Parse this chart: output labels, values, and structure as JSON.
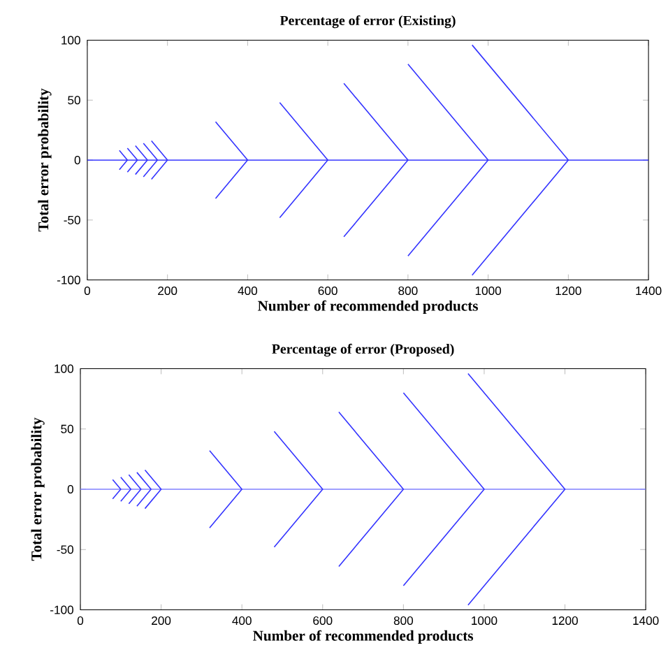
{
  "chart_data": [
    {
      "type": "line",
      "title": "Percentage of error (Existing)",
      "xlabel": "Number of recommended products",
      "ylabel": "Total error probability",
      "xlim": [
        0,
        1400
      ],
      "ylim": [
        -100,
        100
      ],
      "xticks": [
        0,
        200,
        400,
        600,
        800,
        1000,
        1200,
        1400
      ],
      "yticks": [
        -100,
        -50,
        0,
        50,
        100
      ],
      "series": [
        {
          "color": "#1a1aff",
          "x": [
            0,
            1400
          ],
          "values": [
            0,
            0
          ]
        },
        {
          "color": "#3333ff",
          "x": [
            80,
            100,
            80
          ],
          "values": [
            8,
            0,
            -8
          ]
        },
        {
          "color": "#3333ff",
          "x": [
            100,
            125,
            100
          ],
          "values": [
            10,
            0,
            -10
          ]
        },
        {
          "color": "#3333ff",
          "x": [
            120,
            150,
            120
          ],
          "values": [
            12,
            0,
            -12
          ]
        },
        {
          "color": "#3333ff",
          "x": [
            140,
            175,
            140
          ],
          "values": [
            14,
            0,
            -14
          ]
        },
        {
          "color": "#3333ff",
          "x": [
            160,
            200,
            160
          ],
          "values": [
            16,
            0,
            -16
          ]
        },
        {
          "color": "#3333ff",
          "x": [
            320,
            400,
            320
          ],
          "values": [
            32,
            0,
            -32
          ]
        },
        {
          "color": "#3333ff",
          "x": [
            480,
            600,
            480
          ],
          "values": [
            48,
            0,
            -48
          ]
        },
        {
          "color": "#3333ff",
          "x": [
            640,
            800,
            640
          ],
          "values": [
            64,
            0,
            -64
          ]
        },
        {
          "color": "#3333ff",
          "x": [
            800,
            1000,
            800
          ],
          "values": [
            80,
            0,
            -80
          ]
        },
        {
          "color": "#3333ff",
          "x": [
            960,
            1200,
            960
          ],
          "values": [
            96,
            0,
            -96
          ]
        }
      ]
    },
    {
      "type": "line",
      "title": "Percentage of error (Proposed)",
      "xlabel": "Number of recommended products",
      "ylabel": "Total error probability",
      "xlim": [
        0,
        1400
      ],
      "ylim": [
        -100,
        100
      ],
      "xticks": [
        0,
        200,
        400,
        600,
        800,
        1000,
        1200,
        1400
      ],
      "yticks": [
        -100,
        -50,
        0,
        50,
        100
      ],
      "series": [
        {
          "color": "#8080ff",
          "x": [
            0,
            1400
          ],
          "values": [
            0,
            0
          ]
        },
        {
          "color": "#3333ff",
          "x": [
            80,
            100,
            80
          ],
          "values": [
            8,
            0,
            -8
          ]
        },
        {
          "color": "#3333ff",
          "x": [
            100,
            125,
            100
          ],
          "values": [
            10,
            0,
            -10
          ]
        },
        {
          "color": "#3333ff",
          "x": [
            120,
            150,
            120
          ],
          "values": [
            12,
            0,
            -12
          ]
        },
        {
          "color": "#3333ff",
          "x": [
            140,
            175,
            140
          ],
          "values": [
            14,
            0,
            -14
          ]
        },
        {
          "color": "#3333ff",
          "x": [
            160,
            200,
            160
          ],
          "values": [
            16,
            0,
            -16
          ]
        },
        {
          "color": "#3333ff",
          "x": [
            320,
            400,
            320
          ],
          "values": [
            32,
            0,
            -32
          ]
        },
        {
          "color": "#3333ff",
          "x": [
            480,
            600,
            480
          ],
          "values": [
            48,
            0,
            -48
          ]
        },
        {
          "color": "#3333ff",
          "x": [
            640,
            800,
            640
          ],
          "values": [
            64,
            0,
            -64
          ]
        },
        {
          "color": "#3333ff",
          "x": [
            800,
            1000,
            800
          ],
          "values": [
            80,
            0,
            -80
          ]
        },
        {
          "color": "#3333ff",
          "x": [
            960,
            1200,
            960
          ],
          "values": [
            96,
            0,
            -96
          ]
        }
      ]
    }
  ]
}
